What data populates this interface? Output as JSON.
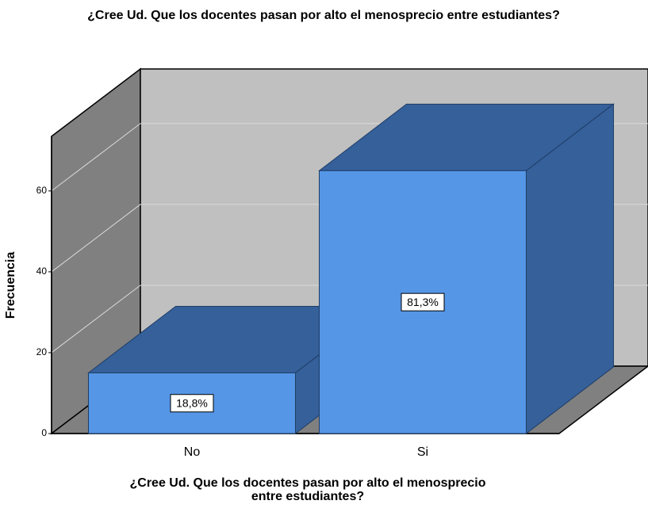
{
  "chart_data": {
    "type": "bar3d",
    "title": "¿Cree Ud. Que los docentes pasan por alto el menosprecio entre estudiantes?",
    "x_label": [
      "¿Cree Ud. Que los docentes pasan por alto el menosprecio",
      "entre estudiantes?"
    ],
    "y_label": "Frecuencia",
    "categories": [
      "No",
      "Si"
    ],
    "values": [
      15,
      65
    ],
    "percentages": [
      18.8,
      81.3
    ],
    "percentage_labels": [
      "18,8%",
      "81,3%"
    ],
    "color": "#5596e6",
    "ylim": [
      0,
      73.5
    ],
    "yticks": [
      0,
      20,
      40,
      60
    ],
    "grid": true
  }
}
